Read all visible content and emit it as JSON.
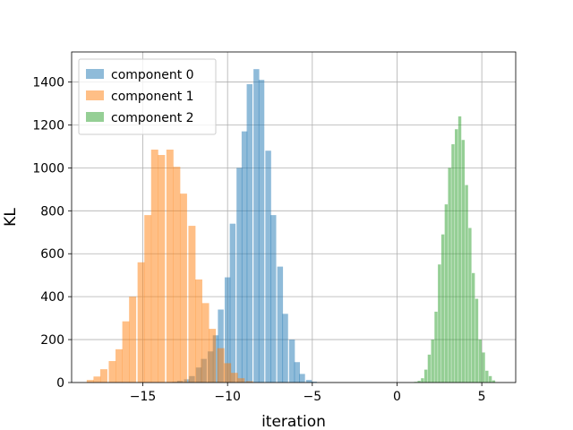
{
  "chart_data": {
    "type": "histogram",
    "title": "",
    "xlabel": "iteration",
    "ylabel": "KL",
    "xlim": [
      -19.2,
      7.0
    ],
    "ylim": [
      0,
      1540
    ],
    "xticks": [
      -15,
      -10,
      -5,
      0,
      5
    ],
    "yticks": [
      0,
      200,
      400,
      600,
      800,
      1000,
      1200,
      1400
    ],
    "grid": true,
    "legend_position": "top-left",
    "series": [
      {
        "name": "component 0",
        "color": "#1f77b4",
        "opacity": 0.5,
        "bin_width": 0.34,
        "bins": [
          {
            "x": -13.1,
            "count": 3
          },
          {
            "x": -12.8,
            "count": 8
          },
          {
            "x": -12.4,
            "count": 15
          },
          {
            "x": -12.1,
            "count": 30
          },
          {
            "x": -11.7,
            "count": 70
          },
          {
            "x": -11.4,
            "count": 110
          },
          {
            "x": -11.0,
            "count": 145
          },
          {
            "x": -10.7,
            "count": 220
          },
          {
            "x": -10.4,
            "count": 340
          },
          {
            "x": -10.0,
            "count": 490
          },
          {
            "x": -9.7,
            "count": 740
          },
          {
            "x": -9.3,
            "count": 1000
          },
          {
            "x": -9.0,
            "count": 1170
          },
          {
            "x": -8.7,
            "count": 1390
          },
          {
            "x": -8.3,
            "count": 1460
          },
          {
            "x": -8.0,
            "count": 1410
          },
          {
            "x": -7.6,
            "count": 1080
          },
          {
            "x": -7.3,
            "count": 780
          },
          {
            "x": -6.9,
            "count": 540
          },
          {
            "x": -6.6,
            "count": 320
          },
          {
            "x": -6.2,
            "count": 200
          },
          {
            "x": -5.9,
            "count": 95
          },
          {
            "x": -5.6,
            "count": 40
          },
          {
            "x": -5.2,
            "count": 12
          },
          {
            "x": -4.9,
            "count": 4
          }
        ]
      },
      {
        "name": "component 1",
        "color": "#ff7f0e",
        "opacity": 0.5,
        "bin_width": 0.42,
        "bins": [
          {
            "x": -18.1,
            "count": 12
          },
          {
            "x": -17.7,
            "count": 28
          },
          {
            "x": -17.3,
            "count": 62
          },
          {
            "x": -16.8,
            "count": 100
          },
          {
            "x": -16.4,
            "count": 155
          },
          {
            "x": -16.0,
            "count": 285
          },
          {
            "x": -15.6,
            "count": 400
          },
          {
            "x": -15.1,
            "count": 560
          },
          {
            "x": -14.7,
            "count": 780
          },
          {
            "x": -14.3,
            "count": 1085
          },
          {
            "x": -13.9,
            "count": 1060
          },
          {
            "x": -13.4,
            "count": 1085
          },
          {
            "x": -13.0,
            "count": 1005
          },
          {
            "x": -12.6,
            "count": 880
          },
          {
            "x": -12.1,
            "count": 730
          },
          {
            "x": -11.7,
            "count": 480
          },
          {
            "x": -11.3,
            "count": 370
          },
          {
            "x": -10.9,
            "count": 250
          },
          {
            "x": -10.4,
            "count": 160
          },
          {
            "x": -10.0,
            "count": 90
          },
          {
            "x": -9.6,
            "count": 45
          },
          {
            "x": -9.2,
            "count": 20
          },
          {
            "x": -8.7,
            "count": 6
          }
        ]
      },
      {
        "name": "component 2",
        "color": "#2ca02c",
        "opacity": 0.5,
        "bin_width": 0.18,
        "bins": [
          {
            "x": 1.1,
            "count": 3
          },
          {
            "x": 1.3,
            "count": 8
          },
          {
            "x": 1.5,
            "count": 20
          },
          {
            "x": 1.7,
            "count": 60
          },
          {
            "x": 1.9,
            "count": 130
          },
          {
            "x": 2.1,
            "count": 200
          },
          {
            "x": 2.3,
            "count": 330
          },
          {
            "x": 2.5,
            "count": 550
          },
          {
            "x": 2.7,
            "count": 690
          },
          {
            "x": 2.9,
            "count": 830
          },
          {
            "x": 3.1,
            "count": 1000
          },
          {
            "x": 3.3,
            "count": 1110
          },
          {
            "x": 3.5,
            "count": 1180
          },
          {
            "x": 3.7,
            "count": 1240
          },
          {
            "x": 3.9,
            "count": 1130
          },
          {
            "x": 4.1,
            "count": 920
          },
          {
            "x": 4.3,
            "count": 720
          },
          {
            "x": 4.5,
            "count": 510
          },
          {
            "x": 4.7,
            "count": 390
          },
          {
            "x": 4.9,
            "count": 200
          },
          {
            "x": 5.1,
            "count": 140
          },
          {
            "x": 5.3,
            "count": 55
          },
          {
            "x": 5.5,
            "count": 30
          },
          {
            "x": 5.7,
            "count": 10
          }
        ]
      }
    ]
  }
}
